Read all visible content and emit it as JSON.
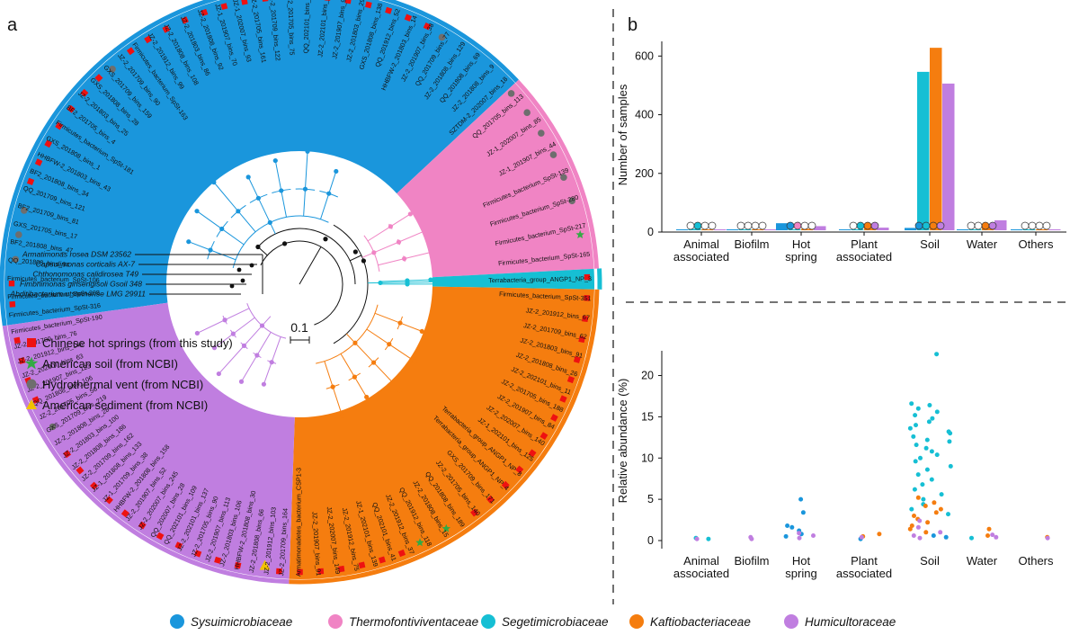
{
  "panels": {
    "a": "a",
    "b": "b"
  },
  "colors": {
    "sysuimicrobiaceae": "#1a96dc",
    "thermofontiviventaceae": "#f084c4",
    "segetimicrobiaceae": "#16bfd4",
    "kaftiobacteriaceae": "#f57d0f",
    "humicultoraceae": "#c07ee0",
    "hot_spring_marker": "#ee1111",
    "soil_marker": "#33aa44",
    "vent_marker": "#6e6e6e",
    "sediment_marker": "#f2c200"
  },
  "families": [
    {
      "name": "Sysuimicrobiaceae",
      "color": "#1a96dc"
    },
    {
      "name": "Thermofontiviventaceae",
      "color": "#f084c4"
    },
    {
      "name": "Segetimicrobiaceae",
      "color": "#16bfd4"
    },
    {
      "name": "Kaftiobacteriaceae",
      "color": "#f57d0f"
    },
    {
      "name": "Humicultoraceae",
      "color": "#c07ee0"
    }
  ],
  "tree": {
    "scale_label": "0.1",
    "outgroups": [
      "Armatimonas rosea DSM 23562",
      "Capsulimonas corticalis AX-7",
      "Chthonomonas calidirosea T49",
      "Fimbriimonas ginsengisoli Gsoil 348",
      "Abditibacterium utsteinense LMG 29911"
    ],
    "clades": [
      {
        "family": "Sysuimicrobiaceae",
        "leaves": [
          "Firmicutes_bacterium_SpSt-316",
          "Firmicutes_bacterium_SpSt-208",
          "Firmicutes_bacterium_SpSt-106",
          "QQ_201808_bins_94",
          "BF2_201808_bins_47",
          "GXS_201705_bins_17",
          "BF2_201709_bins_81",
          "QQ_201709_bins_121",
          "BF2_201808_bins_34",
          "HHBFW-2_201803_bins_43",
          "GXS_201808_bins_1",
          "Firmicutes_bacterium_SpSt-181",
          "BF2_201705_bins_4",
          "JZ-2_201803_bins_25",
          "GXS_201808_bins_28",
          "GXS_201709_bins_159",
          "JZ-2_201709_bins_90",
          "Firmicutes_bacterium_SpSt-163",
          "JZ-2_201912_bins_99",
          "JZ-2_201808_bins_108",
          "JZ-2_201803_bins_86",
          "JZ-2_201808_bins_92",
          "JZ-1_201907_bins_70",
          "JZ-1_202007_bins_93",
          "JZ-2_201705_bins_161",
          "JZ-2_201709_bins_122",
          "BF2_201705_bins_75",
          "QQ_202101_bins_80",
          "JZ-2_202101_bins_47",
          "JZ-2_201907_bins_95",
          "JZ-2_201803_bins_29",
          "GXS_201808_bins_138",
          "QQ_201912_bins_52",
          "HHBFW-2_201803_bins_14",
          "JZ-2_201907_bins_38",
          "QQ_201709_bins_77",
          "JZ-2_201808_bins_129",
          "QQ_201808_bins_69",
          "JZ-2_201808_bins_9",
          "SZTDM-2_202007_bins_18"
        ]
      },
      {
        "family": "Thermofontiviventaceae",
        "leaves": [
          "QQ_201705_bins_113",
          "JZ-1_202007_bins_85",
          "JZ-1_201907_bins_44",
          "Firmicutes_bacterium_SpSt-139",
          "Firmicutes_bacterium_SpSt-280",
          "Firmicutes_bacterium_SpSt-217",
          "Firmicutes_bacterium_SpSt-165"
        ]
      },
      {
        "family": "Segetimicrobiaceae",
        "leaves": [
          "Terrabacteria_group_ANGP1_NP_3"
        ]
      },
      {
        "family": "Kaftiobacteriaceae",
        "leaves": [
          "Firmicutes_bacterium_SpSt-351",
          "JZ-2_201912_bins_67",
          "JZ-2_201709_bins_62",
          "JZ-2_201803_bins_91",
          "JZ-2_201808_bins_26",
          "JZ-2_202101_bins_11",
          "JZ-2_201705_bins_188",
          "JZ-2_201907_bins_84",
          "JZ-2_202007_bins_140",
          "JZ-1_202101_bins_125",
          "Terrabacteria_group_ANGP1_NP_8",
          "Terrabacteria_group_ANGP1_NP_4",
          "GXS_201709_bins_171",
          "JZ-2_201705_bins_140",
          "QQ_201808_bins_189",
          "JZ-2_201808_bins_15",
          "QQ_201912_bins_118",
          "JZ-2_201912_bins_37",
          "QQ_202101_bins_41",
          "JZ-1_202101_bins_139",
          "JZ-2_201912_bins_75",
          "JZ-2_202007_bins_149",
          "JZ-2_201907_bins_91",
          "Armatimonadetes_bacterium_CSP1-3"
        ]
      },
      {
        "family": "Humicultoraceae",
        "leaves": [
          "JZ-2_201709_bins_164",
          "JZ-2_201912_bins_103",
          "JZ-2_201808_bins_66",
          "HHBFW-2_201808_bins_30",
          "JZ-2_201803_bins_106",
          "JZ-2_201907_bins_113",
          "JZ-2_201705_bins_90",
          "JZ-2_202101_bins_137",
          "QQ_202101_bins_109",
          "QQ_202007_bins_28",
          "JZ-2_202007_bins_245",
          "JZ-2_201907_bins_52",
          "HHBFW-2_201808_bins_158",
          "JZ-1_201709_bins_38",
          "JZ-1_201808_bins_133",
          "JZ-2_201709_bins_162",
          "JZ-2_201808_bins_186",
          "JZ-2_201803_bins_100",
          "JZ-2_201808_bins_28",
          "GXS_201709_bins_219",
          "JZ-2_201705_bins_56",
          "QQ_201808_bins_106",
          "JZ-2_201907_bins_123",
          "JZ-2_202007_bins_63",
          "JZ-2_201912_bins_146",
          "JZ-2_201709_bins_76",
          "Firmicutes_bacterium_SpSt-190"
        ]
      }
    ]
  },
  "source_legend": [
    {
      "label": "Chinese hot springs (from this study)",
      "shape": "square",
      "color": "#ee1111"
    },
    {
      "label": "American soil (from NCBI)",
      "shape": "star",
      "color": "#33aa44"
    },
    {
      "label": "Hydrothermal vent (from NCBI)",
      "shape": "circle",
      "color": "#6e6e6e"
    },
    {
      "label": "American sediment (from NCBI)",
      "shape": "triangle",
      "color": "#f2c200"
    }
  ],
  "chart_data": [
    {
      "type": "bar",
      "title": "",
      "xlabel": "",
      "ylabel": "Number of samples",
      "ylim": [
        0,
        650
      ],
      "yticks": [
        0,
        200,
        400,
        600
      ],
      "categories": [
        "Animal associated",
        "Biofilm",
        "Hot spring",
        "Plant associated",
        "Soil",
        "Water",
        "Others"
      ],
      "series": [
        {
          "family": "Sysuimicrobiaceae",
          "color": "#1a96dc",
          "values": [
            2,
            1,
            24,
            3,
            8,
            2,
            1
          ]
        },
        {
          "family": "Segetimicrobiaceae",
          "color": "#16bfd4",
          "values": [
            5,
            0,
            0,
            3,
            540,
            3,
            0
          ]
        },
        {
          "family": "Kaftiobacteriaceae",
          "color": "#f57d0f",
          "values": [
            3,
            1,
            5,
            22,
            622,
            16,
            3
          ]
        },
        {
          "family": "Humicultoraceae",
          "color": "#c07ee0",
          "values": [
            3,
            2,
            14,
            9,
            500,
            34,
            3
          ]
        }
      ],
      "markers": {
        "Animal associated": [
          "#ffffff",
          "#16bfd4",
          "#ffffff",
          "#ffffff"
        ],
        "Biofilm": [
          "#ffffff",
          "#ffffff",
          "#ffffff",
          "#ffffff"
        ],
        "Hot spring": [
          "#1a96dc",
          "#f084c4",
          "#ffffff",
          "#ffffff"
        ],
        "Plant associated": [
          "#ffffff",
          "#16bfd4",
          "#f57d0f",
          "#c07ee0"
        ],
        "Soil": [
          "#1a96dc",
          "#16bfd4",
          "#f57d0f",
          "#c07ee0"
        ],
        "Water": [
          "#ffffff",
          "#ffffff",
          "#f57d0f",
          "#c07ee0"
        ],
        "Others": [
          "#ffffff",
          "#ffffff",
          "#ffffff",
          "#ffffff"
        ]
      },
      "legend": "bottom",
      "grid": false
    },
    {
      "type": "scatter",
      "title": "",
      "xlabel": "",
      "ylabel": "Relative abundance (%)",
      "ylim": [
        0,
        23
      ],
      "yticks": [
        0,
        5,
        10,
        15,
        20
      ],
      "categories": [
        "Animal associated",
        "Biofilm",
        "Hot spring",
        "Plant associated",
        "Soil",
        "Water",
        "Others"
      ],
      "series": [
        {
          "family": "Sysuimicrobiaceae",
          "color": "#1a96dc",
          "points": [
            [
              "Hot spring",
              5.0
            ],
            [
              "Hot spring",
              3.4
            ],
            [
              "Hot spring",
              1.8
            ],
            [
              "Hot spring",
              1.6
            ],
            [
              "Hot spring",
              1.2
            ],
            [
              "Hot spring",
              0.8
            ],
            [
              "Hot spring",
              0.5
            ],
            [
              "Soil",
              0.4
            ],
            [
              "Soil",
              0.6
            ],
            [
              "Plant associated",
              0.2
            ]
          ]
        },
        {
          "family": "Segetimicrobiaceae",
          "color": "#16bfd4",
          "points": [
            [
              "Animal associated",
              0.3
            ],
            [
              "Animal associated",
              0.2
            ],
            [
              "Soil",
              22.6
            ],
            [
              "Soil",
              16.6
            ],
            [
              "Soil",
              16.4
            ],
            [
              "Soil",
              16.0
            ],
            [
              "Soil",
              15.6
            ],
            [
              "Soil",
              15.2
            ],
            [
              "Soil",
              14.8
            ],
            [
              "Soil",
              14.4
            ],
            [
              "Soil",
              14.0
            ],
            [
              "Soil",
              13.6
            ],
            [
              "Soil",
              13.2
            ],
            [
              "Soil",
              13.0
            ],
            [
              "Soil",
              12.6
            ],
            [
              "Soil",
              12.2
            ],
            [
              "Soil",
              12.0
            ],
            [
              "Soil",
              11.6
            ],
            [
              "Soil",
              11.2
            ],
            [
              "Soil",
              10.8
            ],
            [
              "Soil",
              10.4
            ],
            [
              "Soil",
              10.0
            ],
            [
              "Soil",
              9.6
            ],
            [
              "Soil",
              9.0
            ],
            [
              "Soil",
              8.6
            ],
            [
              "Soil",
              8.0
            ],
            [
              "Soil",
              7.4
            ],
            [
              "Soil",
              6.8
            ],
            [
              "Soil",
              6.2
            ],
            [
              "Soil",
              5.6
            ],
            [
              "Soil",
              5.0
            ],
            [
              "Soil",
              4.4
            ],
            [
              "Soil",
              3.8
            ],
            [
              "Soil",
              3.2
            ],
            [
              "Water",
              0.3
            ]
          ]
        },
        {
          "family": "Kaftiobacteriaceae",
          "color": "#f57d0f",
          "points": [
            [
              "Plant associated",
              0.8
            ],
            [
              "Plant associated",
              0.5
            ],
            [
              "Soil",
              5.2
            ],
            [
              "Soil",
              4.6
            ],
            [
              "Soil",
              4.2
            ],
            [
              "Soil",
              3.8
            ],
            [
              "Soil",
              3.4
            ],
            [
              "Soil",
              3.0
            ],
            [
              "Soil",
              2.6
            ],
            [
              "Soil",
              2.2
            ],
            [
              "Soil",
              1.8
            ],
            [
              "Soil",
              1.4
            ],
            [
              "Soil",
              1.0
            ],
            [
              "Water",
              1.4
            ],
            [
              "Water",
              0.6
            ],
            [
              "Others",
              0.4
            ]
          ]
        },
        {
          "family": "Humicultoraceae",
          "color": "#c07ee0",
          "points": [
            [
              "Animal associated",
              0.2
            ],
            [
              "Biofilm",
              0.4
            ],
            [
              "Biofilm",
              0.2
            ],
            [
              "Hot spring",
              0.9
            ],
            [
              "Hot spring",
              0.6
            ],
            [
              "Hot spring",
              0.3
            ],
            [
              "Plant associated",
              0.4
            ],
            [
              "Soil",
              2.4
            ],
            [
              "Soil",
              1.6
            ],
            [
              "Soil",
              1.0
            ],
            [
              "Soil",
              0.6
            ],
            [
              "Soil",
              0.3
            ],
            [
              "Water",
              0.7
            ],
            [
              "Water",
              0.4
            ],
            [
              "Others",
              0.3
            ]
          ]
        }
      ],
      "legend": "bottom",
      "grid": false
    }
  ]
}
